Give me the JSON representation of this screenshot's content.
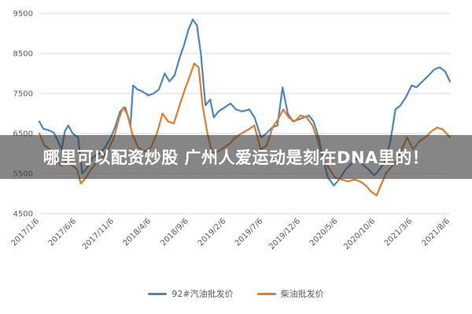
{
  "overlay": {
    "banner_text": "哪里可以配资炒股 广州人爱运动是刻在DNA里的！"
  },
  "colors": {
    "series_gasoline": "#4a86c5",
    "series_diesel": "#e07b2f",
    "grid": "#d9d9d9",
    "banner_bg": "rgba(60,60,60,0.62)"
  },
  "chart_data": {
    "type": "line",
    "title": "",
    "xlabel": "",
    "ylabel": "",
    "ylim": [
      4500,
      9500
    ],
    "yticks": [
      4500,
      5500,
      6500,
      7500,
      8500,
      9500
    ],
    "xlim": [
      "2017-01-06",
      "2021-08-06"
    ],
    "xticks": [
      "2017/1/6",
      "2017/6/6",
      "2017/11/6",
      "2018/4/6",
      "2018/9/6",
      "2019/2/6",
      "2019/7/6",
      "2019/12/6",
      "2020/5/6",
      "2020/10/6",
      "2021/3/6",
      "2021/8/6"
    ],
    "grid": "horizontal",
    "legend": "bottom",
    "series": [
      {
        "name": "92#汽油批发价",
        "color": "#4a86c5",
        "points": [
          [
            "2017-01-06",
            6800
          ],
          [
            "2017-01-22",
            6620
          ],
          [
            "2017-02-13",
            6580
          ],
          [
            "2017-03-06",
            6520
          ],
          [
            "2017-03-20",
            6350
          ],
          [
            "2017-04-07",
            6100
          ],
          [
            "2017-04-20",
            6550
          ],
          [
            "2017-05-04",
            6700
          ],
          [
            "2017-05-22",
            6500
          ],
          [
            "2017-06-13",
            6400
          ],
          [
            "2017-06-30",
            5500
          ],
          [
            "2017-07-21",
            5650
          ],
          [
            "2017-08-11",
            5900
          ],
          [
            "2017-09-07",
            6000
          ],
          [
            "2017-10-01",
            6150
          ],
          [
            "2017-10-24",
            6400
          ],
          [
            "2017-11-10",
            6650
          ],
          [
            "2017-12-01",
            7050
          ],
          [
            "2017-12-22",
            7150
          ],
          [
            "2018-01-12",
            6700
          ],
          [
            "2018-01-23",
            7700
          ],
          [
            "2018-02-10",
            7600
          ],
          [
            "2018-03-02",
            7550
          ],
          [
            "2018-03-27",
            7450
          ],
          [
            "2018-04-17",
            7500
          ],
          [
            "2018-05-08",
            7600
          ],
          [
            "2018-06-01",
            8000
          ],
          [
            "2018-06-20",
            7800
          ],
          [
            "2018-07-11",
            7950
          ],
          [
            "2018-08-01",
            8400
          ],
          [
            "2018-08-18",
            8700
          ],
          [
            "2018-09-06",
            9100
          ],
          [
            "2018-09-23",
            9350
          ],
          [
            "2018-10-10",
            9200
          ],
          [
            "2018-10-26",
            8500
          ],
          [
            "2018-11-14",
            7200
          ],
          [
            "2018-12-03",
            7350
          ],
          [
            "2018-12-18",
            6900
          ],
          [
            "2019-01-06",
            7050
          ],
          [
            "2019-01-31",
            7150
          ],
          [
            "2019-02-24",
            7250
          ],
          [
            "2019-03-18",
            7100
          ],
          [
            "2019-04-13",
            7050
          ],
          [
            "2019-05-11",
            7100
          ],
          [
            "2019-06-02",
            6900
          ],
          [
            "2019-06-28",
            6400
          ],
          [
            "2019-07-20",
            6500
          ],
          [
            "2019-08-13",
            6650
          ],
          [
            "2019-09-03",
            6700
          ],
          [
            "2019-09-24",
            7650
          ],
          [
            "2019-10-15",
            7000
          ],
          [
            "2019-11-05",
            6800
          ],
          [
            "2019-11-28",
            6850
          ],
          [
            "2019-12-21",
            6900
          ],
          [
            "2020-01-09",
            6950
          ],
          [
            "2020-01-28",
            6800
          ],
          [
            "2020-02-18",
            6400
          ],
          [
            "2020-03-06",
            5900
          ],
          [
            "2020-03-27",
            5400
          ],
          [
            "2020-04-20",
            5200
          ],
          [
            "2020-05-11",
            5350
          ],
          [
            "2020-06-07",
            5600
          ],
          [
            "2020-07-01",
            5750
          ],
          [
            "2020-07-28",
            5900
          ],
          [
            "2020-08-19",
            5700
          ],
          [
            "2020-09-09",
            5600
          ],
          [
            "2020-10-01",
            5450
          ],
          [
            "2020-10-23",
            5600
          ],
          [
            "2020-11-14",
            5800
          ],
          [
            "2020-12-06",
            6300
          ],
          [
            "2020-12-27",
            7100
          ],
          [
            "2021-01-16",
            7200
          ],
          [
            "2021-02-07",
            7400
          ],
          [
            "2021-03-03",
            7700
          ],
          [
            "2021-03-22",
            7650
          ],
          [
            "2021-04-16",
            7800
          ],
          [
            "2021-05-11",
            7950
          ],
          [
            "2021-06-03",
            8100
          ],
          [
            "2021-06-25",
            8150
          ],
          [
            "2021-07-17",
            8050
          ],
          [
            "2021-08-06",
            7800
          ]
        ]
      },
      {
        "name": "柴油批发价",
        "color": "#e07b2f",
        "points": [
          [
            "2017-01-06",
            6500
          ],
          [
            "2017-01-27",
            6200
          ],
          [
            "2017-02-20",
            6100
          ],
          [
            "2017-03-13",
            5900
          ],
          [
            "2017-04-03",
            5700
          ],
          [
            "2017-04-27",
            5800
          ],
          [
            "2017-05-19",
            5700
          ],
          [
            "2017-06-09",
            5600
          ],
          [
            "2017-06-24",
            5250
          ],
          [
            "2017-07-09",
            5350
          ],
          [
            "2017-08-05",
            5600
          ],
          [
            "2017-08-30",
            5800
          ],
          [
            "2017-09-20",
            5900
          ],
          [
            "2017-10-14",
            6100
          ],
          [
            "2017-11-06",
            6400
          ],
          [
            "2017-11-28",
            6900
          ],
          [
            "2017-12-14",
            7150
          ],
          [
            "2018-01-02",
            6950
          ],
          [
            "2018-01-19",
            6500
          ],
          [
            "2018-02-13",
            6150
          ],
          [
            "2018-03-10",
            6050
          ],
          [
            "2018-04-06",
            6150
          ],
          [
            "2018-04-30",
            6500
          ],
          [
            "2018-05-23",
            7000
          ],
          [
            "2018-06-15",
            6800
          ],
          [
            "2018-07-08",
            6750
          ],
          [
            "2018-07-31",
            7200
          ],
          [
            "2018-08-22",
            7600
          ],
          [
            "2018-09-12",
            7950
          ],
          [
            "2018-09-29",
            8250
          ],
          [
            "2018-10-17",
            8150
          ],
          [
            "2018-11-02",
            7200
          ],
          [
            "2018-11-22",
            6500
          ],
          [
            "2018-12-11",
            6000
          ],
          [
            "2019-01-03",
            6050
          ],
          [
            "2019-01-29",
            6150
          ],
          [
            "2019-02-21",
            6250
          ],
          [
            "2019-03-16",
            6400
          ],
          [
            "2019-04-10",
            6500
          ],
          [
            "2019-05-08",
            6600
          ],
          [
            "2019-06-01",
            6700
          ],
          [
            "2019-06-27",
            6100
          ],
          [
            "2019-07-22",
            6200
          ],
          [
            "2019-08-14",
            6650
          ],
          [
            "2019-09-05",
            6850
          ],
          [
            "2019-09-27",
            7100
          ],
          [
            "2019-10-19",
            6900
          ],
          [
            "2019-11-12",
            6800
          ],
          [
            "2019-12-06",
            6950
          ],
          [
            "2019-12-31",
            6900
          ],
          [
            "2020-01-24",
            6700
          ],
          [
            "2020-02-15",
            6300
          ],
          [
            "2020-03-04",
            5900
          ],
          [
            "2020-03-29",
            5650
          ],
          [
            "2020-04-24",
            5400
          ],
          [
            "2020-05-21",
            5350
          ],
          [
            "2020-06-17",
            5300
          ],
          [
            "2020-07-12",
            5350
          ],
          [
            "2020-08-05",
            5300
          ],
          [
            "2020-08-28",
            5200
          ],
          [
            "2020-09-18",
            5050
          ],
          [
            "2020-10-11",
            4950
          ],
          [
            "2020-10-28",
            5200
          ],
          [
            "2020-11-18",
            5500
          ],
          [
            "2020-12-09",
            5650
          ],
          [
            "2020-12-30",
            5800
          ],
          [
            "2021-01-21",
            6100
          ],
          [
            "2021-02-13",
            6400
          ],
          [
            "2021-03-09",
            6100
          ],
          [
            "2021-04-02",
            6300
          ],
          [
            "2021-04-27",
            6400
          ],
          [
            "2021-05-22",
            6550
          ],
          [
            "2021-06-14",
            6650
          ],
          [
            "2021-07-08",
            6600
          ],
          [
            "2021-08-06",
            6400
          ]
        ]
      }
    ]
  }
}
